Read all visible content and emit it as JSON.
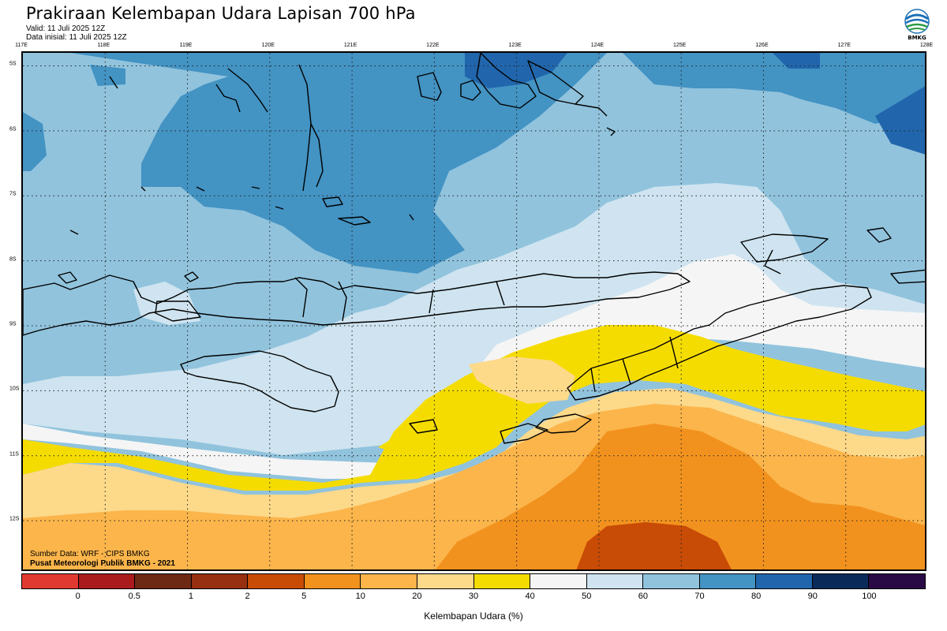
{
  "header": {
    "title": "Prakiraan Kelembapan Udara Lapisan 700 hPa",
    "valid": "Valid: 11 Juli 2025 12Z",
    "init": "Data inisial: 11 Juli 2025 12Z"
  },
  "logo": {
    "text": "BMKG",
    "icon": "bmkg-logo-icon"
  },
  "axes": {
    "lon_labels": [
      "117E",
      "118E",
      "119E",
      "120E",
      "121E",
      "122E",
      "123E",
      "124E",
      "125E",
      "126E",
      "127E",
      "128E"
    ],
    "lat_labels": [
      "5S",
      "6S",
      "7S",
      "8S",
      "9S",
      "10S",
      "11S",
      "12S"
    ],
    "lon_range": [
      117,
      128
    ],
    "lat_range": [
      -4.8,
      -12.8
    ]
  },
  "source": {
    "line1": "Sumber Data: WRF - CIPS BMKG",
    "line2": "Pusat Meteorologi Publik BMKG - 2021"
  },
  "legend": {
    "title": "Kelembapan Udara (%)",
    "ticks": [
      "0",
      "0.5",
      "1",
      "2",
      "5",
      "10",
      "20",
      "30",
      "40",
      "50",
      "60",
      "70",
      "80",
      "90",
      "100"
    ],
    "colors": [
      "#e03a30",
      "#a91b1d",
      "#6e2914",
      "#963010",
      "#c84b06",
      "#f2921e",
      "#fbb54b",
      "#fdd98a",
      "#f5dc00",
      "#f5f5f5",
      "#cfe4f0",
      "#91c3dd",
      "#4393c3",
      "#2166ac",
      "#0a2a5a",
      "#2a0a45"
    ]
  },
  "chart_data": {
    "type": "heatmap",
    "title": "Prakiraan Kelembapan Udara Lapisan 700 hPa",
    "variable": "Kelembapan Udara (%)",
    "x_range": [
      117,
      128
    ],
    "y_range": [
      -4.8,
      -12.8
    ],
    "grid": true,
    "levels": [
      0,
      0.5,
      1,
      2,
      5,
      10,
      20,
      30,
      40,
      50,
      60,
      70,
      80,
      90,
      100
    ]
  }
}
